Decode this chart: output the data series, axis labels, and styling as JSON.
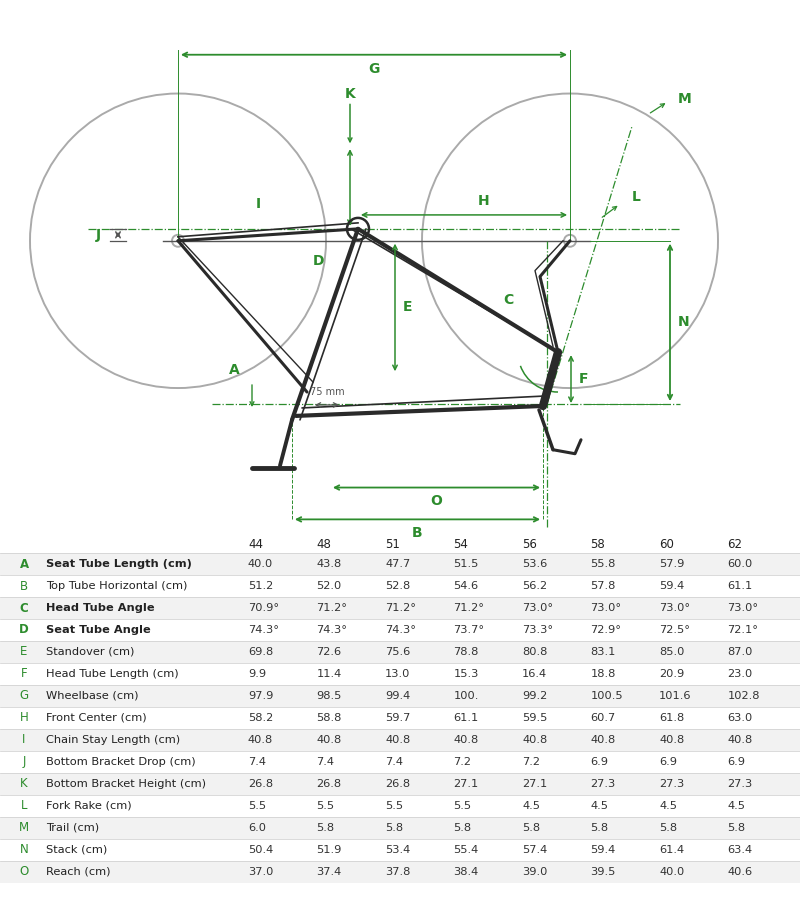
{
  "sizes": [
    "44",
    "48",
    "51",
    "54",
    "56",
    "58",
    "60",
    "62"
  ],
  "rows": [
    {
      "label": "A",
      "name": "Seat Tube Length (cm)",
      "values": [
        "40.0",
        "43.8",
        "47.7",
        "51.5",
        "53.6",
        "55.8",
        "57.9",
        "60.0"
      ],
      "bold": true
    },
    {
      "label": "B",
      "name": "Top Tube Horizontal (cm)",
      "values": [
        "51.2",
        "52.0",
        "52.8",
        "54.6",
        "56.2",
        "57.8",
        "59.4",
        "61.1"
      ],
      "bold": false
    },
    {
      "label": "C",
      "name": "Head Tube Angle",
      "values": [
        "70.9°",
        "71.2°",
        "71.2°",
        "71.2°",
        "73.0°",
        "73.0°",
        "73.0°",
        "73.0°"
      ],
      "bold": true
    },
    {
      "label": "D",
      "name": "Seat Tube Angle",
      "values": [
        "74.3°",
        "74.3°",
        "74.3°",
        "73.7°",
        "73.3°",
        "72.9°",
        "72.5°",
        "72.1°"
      ],
      "bold": true
    },
    {
      "label": "E",
      "name": "Standover (cm)",
      "values": [
        "69.8",
        "72.6",
        "75.6",
        "78.8",
        "80.8",
        "83.1",
        "85.0",
        "87.0"
      ],
      "bold": false
    },
    {
      "label": "F",
      "name": "Head Tube Length (cm)",
      "values": [
        "9.9",
        "11.4",
        "13.0",
        "15.3",
        "16.4",
        "18.8",
        "20.9",
        "23.0"
      ],
      "bold": false
    },
    {
      "label": "G",
      "name": "Wheelbase (cm)",
      "values": [
        "97.9",
        "98.5",
        "99.4",
        "100.",
        "99.2",
        "100.5",
        "101.6",
        "102.8"
      ],
      "bold": false
    },
    {
      "label": "H",
      "name": "Front Center (cm)",
      "values": [
        "58.2",
        "58.8",
        "59.7",
        "61.1",
        "59.5",
        "60.7",
        "61.8",
        "63.0"
      ],
      "bold": false
    },
    {
      "label": "I",
      "name": "Chain Stay Length (cm)",
      "values": [
        "40.8",
        "40.8",
        "40.8",
        "40.8",
        "40.8",
        "40.8",
        "40.8",
        "40.8"
      ],
      "bold": false
    },
    {
      "label": "J",
      "name": "Bottom Bracket Drop (cm)",
      "values": [
        "7.4",
        "7.4",
        "7.4",
        "7.2",
        "7.2",
        "6.9",
        "6.9",
        "6.9"
      ],
      "bold": false
    },
    {
      "label": "K",
      "name": "Bottom Bracket Height (cm)",
      "values": [
        "26.8",
        "26.8",
        "26.8",
        "27.1",
        "27.1",
        "27.3",
        "27.3",
        "27.3"
      ],
      "bold": false
    },
    {
      "label": "L",
      "name": "Fork Rake (cm)",
      "values": [
        "5.5",
        "5.5",
        "5.5",
        "5.5",
        "4.5",
        "4.5",
        "4.5",
        "4.5"
      ],
      "bold": false
    },
    {
      "label": "M",
      "name": "Trail (cm)",
      "values": [
        "6.0",
        "5.8",
        "5.8",
        "5.8",
        "5.8",
        "5.8",
        "5.8",
        "5.8"
      ],
      "bold": false
    },
    {
      "label": "N",
      "name": "Stack (cm)",
      "values": [
        "50.4",
        "51.9",
        "53.4",
        "55.4",
        "57.4",
        "59.4",
        "61.4",
        "63.4"
      ],
      "bold": false
    },
    {
      "label": "O",
      "name": "Reach (cm)",
      "values": [
        "37.0",
        "37.4",
        "37.8",
        "38.4",
        "39.0",
        "39.5",
        "40.0",
        "40.6"
      ],
      "bold": false
    }
  ],
  "green": "#2d8c2d",
  "label_green": "#2d8c2d",
  "frame_color": "#2a2a2a",
  "wheel_color": "#aaaaaa",
  "ground_color": "#555555",
  "row_alt_color": "#f2f2f2",
  "sep_color": "#cccccc",
  "text_color": "#222222",
  "val_color": "#333333",
  "bold_labels": [
    "A",
    "C",
    "D"
  ]
}
